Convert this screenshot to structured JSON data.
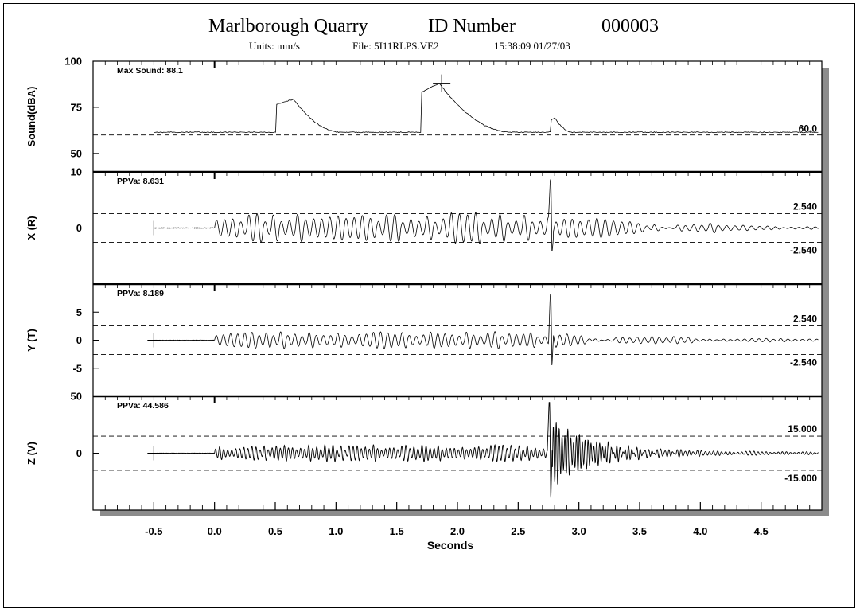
{
  "header": {
    "site": "Marlborough Quarry",
    "id_label": "ID Number",
    "id_value": "000003",
    "units": "Units: mm/s",
    "file": "File: 5I11RLPS.VE2",
    "datetime": "15:38:09 01/27/03"
  },
  "chart_data": {
    "type": "line",
    "xlabel": "Seconds",
    "xlim": [
      -1.0,
      5.0
    ],
    "x_ticks": [
      -0.5,
      0.0,
      0.5,
      1.0,
      1.5,
      2.0,
      2.5,
      3.0,
      3.5,
      4.0,
      4.5
    ],
    "x_tick_labels": [
      "-0.5",
      "0.0",
      "0.5",
      "1.0",
      "1.5",
      "2.0",
      "2.5",
      "3.0",
      "3.5",
      "4.0",
      "4.5"
    ],
    "grid": false,
    "panels": [
      {
        "id": "sound",
        "ylabel": "Sound(dBA)",
        "ylim": [
          40,
          100
        ],
        "y_ticks": [
          50,
          75,
          100
        ],
        "y_tick_labels": [
          "50",
          "75",
          "100"
        ],
        "annotation": "Max Sound: 88.1",
        "max_value": 88.1,
        "max_time": 1.87,
        "thresholds": [
          60.0
        ],
        "threshold_labels": [
          "60.0"
        ],
        "waveform": {
          "kind": "envelope",
          "start": -0.5,
          "end": 4.97,
          "baseline": 61.5,
          "steps": [
            {
              "t": 0.51,
              "jump": 76.5,
              "peak_t": 0.65,
              "peak": 79.5,
              "decay_end": 1.05
            },
            {
              "t": 1.7,
              "jump": 83.0,
              "peak_t": 1.85,
              "peak": 88.1,
              "decay_end": 2.45
            },
            {
              "t": 2.77,
              "jump": 68.0,
              "peak_t": 2.8,
              "peak": 69.5,
              "decay_end": 2.95
            }
          ]
        }
      },
      {
        "id": "x",
        "ylabel": "X (R)",
        "ylim": [
          -10,
          10
        ],
        "y_ticks": [
          0,
          10
        ],
        "y_tick_labels": [
          "0",
          "10"
        ],
        "annotation": "PPVa: 8.631",
        "max_value": 8.631,
        "thresholds": [
          2.54,
          -2.54
        ],
        "threshold_labels": [
          "2.540",
          "-2.540"
        ],
        "waveform": {
          "kind": "oscillation",
          "start": -0.5,
          "end": 4.97,
          "onset": 0.0,
          "freq": 15,
          "amp": 1.9,
          "jitter": 0.5,
          "sustain_end": 2.4,
          "decay_tau": 1.2,
          "spike_t": 2.77,
          "spike_pos": 8.6,
          "spike_neg": -4.5,
          "post_amp": 1.1,
          "post_freq": 14,
          "post_tau": 0.9,
          "seed": 11
        }
      },
      {
        "id": "y",
        "ylabel": "Y (T)",
        "ylim": [
          -10,
          10
        ],
        "y_ticks": [
          -5,
          0,
          5
        ],
        "y_tick_labels": [
          "-5",
          "0",
          "5"
        ],
        "annotation": "PPVa: 8.189",
        "max_value": 8.189,
        "thresholds": [
          2.54,
          -2.54
        ],
        "threshold_labels": [
          "2.540",
          "-2.540"
        ],
        "waveform": {
          "kind": "oscillation",
          "start": -0.5,
          "end": 4.97,
          "onset": 0.0,
          "freq": 17,
          "amp": 1.1,
          "jitter": 0.45,
          "sustain_end": 2.4,
          "decay_tau": 1.2,
          "spike_t": 2.77,
          "spike_pos": 8.2,
          "spike_neg": -4.8,
          "post_amp": 0.8,
          "post_freq": 16,
          "post_tau": 0.8,
          "seed": 23
        }
      },
      {
        "id": "z",
        "ylabel": "Z (V)",
        "ylim": [
          -50,
          50
        ],
        "y_ticks": [
          0,
          50
        ],
        "y_tick_labels": [
          "0",
          "50"
        ],
        "annotation": "PPVa: 44.586",
        "max_value": 44.586,
        "thresholds": [
          15.0,
          -15.0
        ],
        "threshold_labels": [
          "15.000",
          "-15.000"
        ],
        "waveform": {
          "kind": "oscillation",
          "start": -0.5,
          "end": 4.97,
          "onset": 0.0,
          "freq": 30,
          "amp": 5.0,
          "jitter": 0.5,
          "sustain_end": 2.4,
          "decay_tau": 1.5,
          "spike_t": 2.76,
          "spike_pos": 44.6,
          "spike_neg": -45.0,
          "post_amp": 36.0,
          "post_freq": 42,
          "post_tau": 0.28,
          "seed": 37
        }
      }
    ]
  }
}
